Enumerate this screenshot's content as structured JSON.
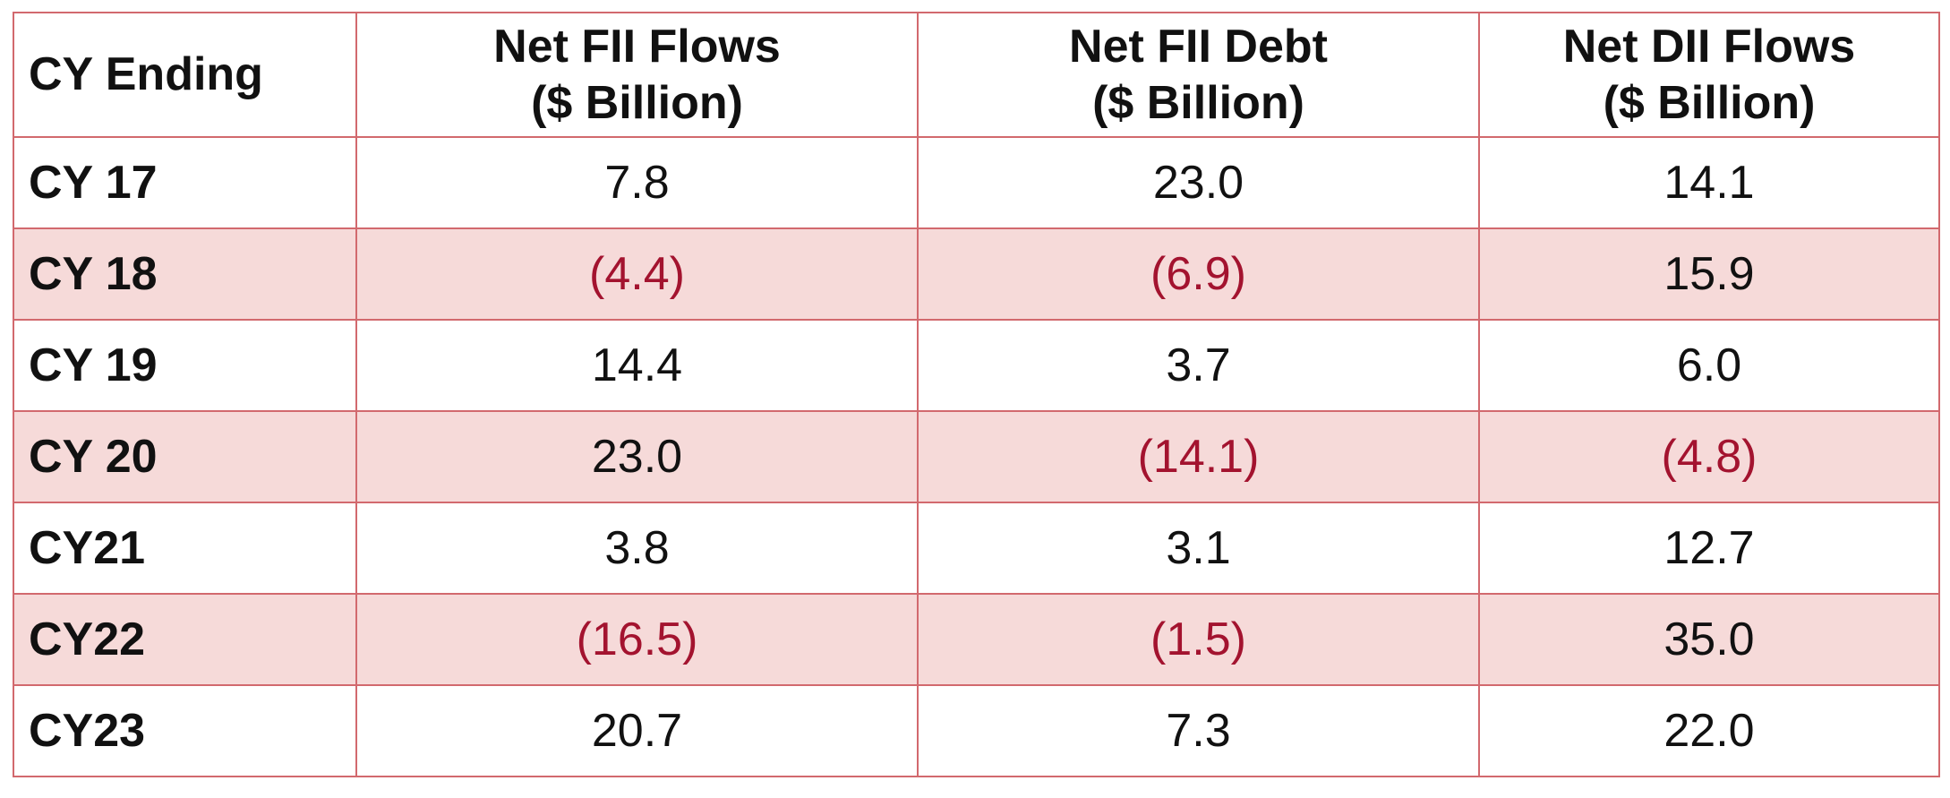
{
  "chart_data": {
    "type": "table",
    "columns": [
      {
        "line1": "CY Ending",
        "line2": ""
      },
      {
        "line1": "Net FII Flows",
        "line2": "($ Billion)"
      },
      {
        "line1": "Net FII Debt",
        "line2": "($ Billion)"
      },
      {
        "line1": "Net DII Flows",
        "line2": "($ Billion)"
      }
    ],
    "rows": [
      {
        "label": "CY 17",
        "values": [
          "7.8",
          "23.0",
          "14.1"
        ],
        "negative": [
          false,
          false,
          false
        ]
      },
      {
        "label": "CY 18",
        "values": [
          "(4.4)",
          "(6.9)",
          "15.9"
        ],
        "negative": [
          true,
          true,
          false
        ]
      },
      {
        "label": "CY 19",
        "values": [
          "14.4",
          "3.7",
          "6.0"
        ],
        "negative": [
          false,
          false,
          false
        ]
      },
      {
        "label": "CY 20",
        "values": [
          "23.0",
          "(14.1)",
          "(4.8)"
        ],
        "negative": [
          false,
          true,
          true
        ]
      },
      {
        "label": "CY21",
        "values": [
          "3.8",
          "3.1",
          "12.7"
        ],
        "negative": [
          false,
          false,
          false
        ]
      },
      {
        "label": "CY22",
        "values": [
          "(16.5)",
          "(1.5)",
          "35.0"
        ],
        "negative": [
          true,
          true,
          false
        ]
      },
      {
        "label": "CY23",
        "values": [
          "20.7",
          "7.3",
          "22.0"
        ],
        "negative": [
          false,
          false,
          false
        ]
      }
    ],
    "colors": {
      "border": "#d2696e",
      "shaded_row": "#f6dad9",
      "negative_text": "#a3132f",
      "text": "#111111"
    }
  }
}
